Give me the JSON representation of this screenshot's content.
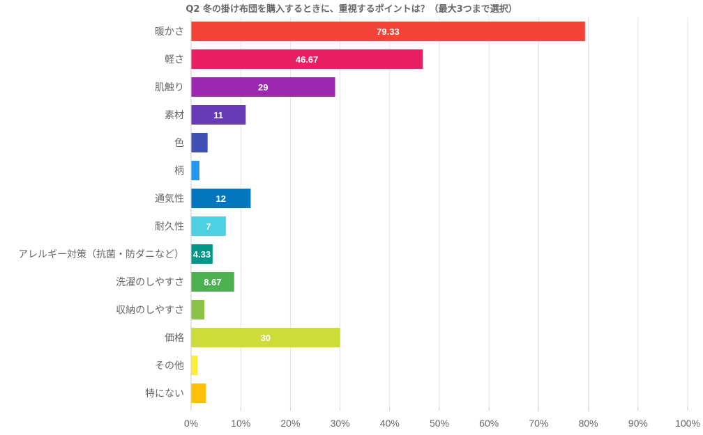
{
  "chart_data": {
    "type": "bar",
    "orientation": "horizontal",
    "title": "Q2 冬の掛け布団を購入するときに、重視するポイントは？（最大3つまで選択）",
    "xlabel": "",
    "ylabel": "",
    "xlim": [
      0,
      100
    ],
    "x_ticks": [
      "0%",
      "10%",
      "20%",
      "30%",
      "40%",
      "50%",
      "60%",
      "70%",
      "80%",
      "90%",
      "100%"
    ],
    "grid": true,
    "categories": [
      "暖かさ",
      "軽さ",
      "肌触り",
      "素材",
      "色",
      "柄",
      "通気性",
      "耐久性",
      "アレルギー対策（抗菌・防ダニなど）",
      "洗濯のしやすさ",
      "収納のしやすさ",
      "価格",
      "その他",
      "特にない"
    ],
    "values": [
      79.33,
      46.67,
      29,
      11,
      3.33,
      1.67,
      12,
      7,
      4.33,
      8.67,
      2.67,
      30,
      1.33,
      3
    ],
    "data_labels": [
      "79.33",
      "46.67",
      "29",
      "11",
      "",
      "",
      "12",
      "7",
      "4.33",
      "8.67",
      "",
      "30",
      "",
      ""
    ],
    "colors": [
      "#f44336",
      "#e91e63",
      "#9c27b0",
      "#673ab7",
      "#3f51b5",
      "#2196f3",
      "#0277bd",
      "#4dd0e1",
      "#009688",
      "#4caf50",
      "#8bc34a",
      "#cddc39",
      "#ffeb3b",
      "#ffc107"
    ]
  }
}
